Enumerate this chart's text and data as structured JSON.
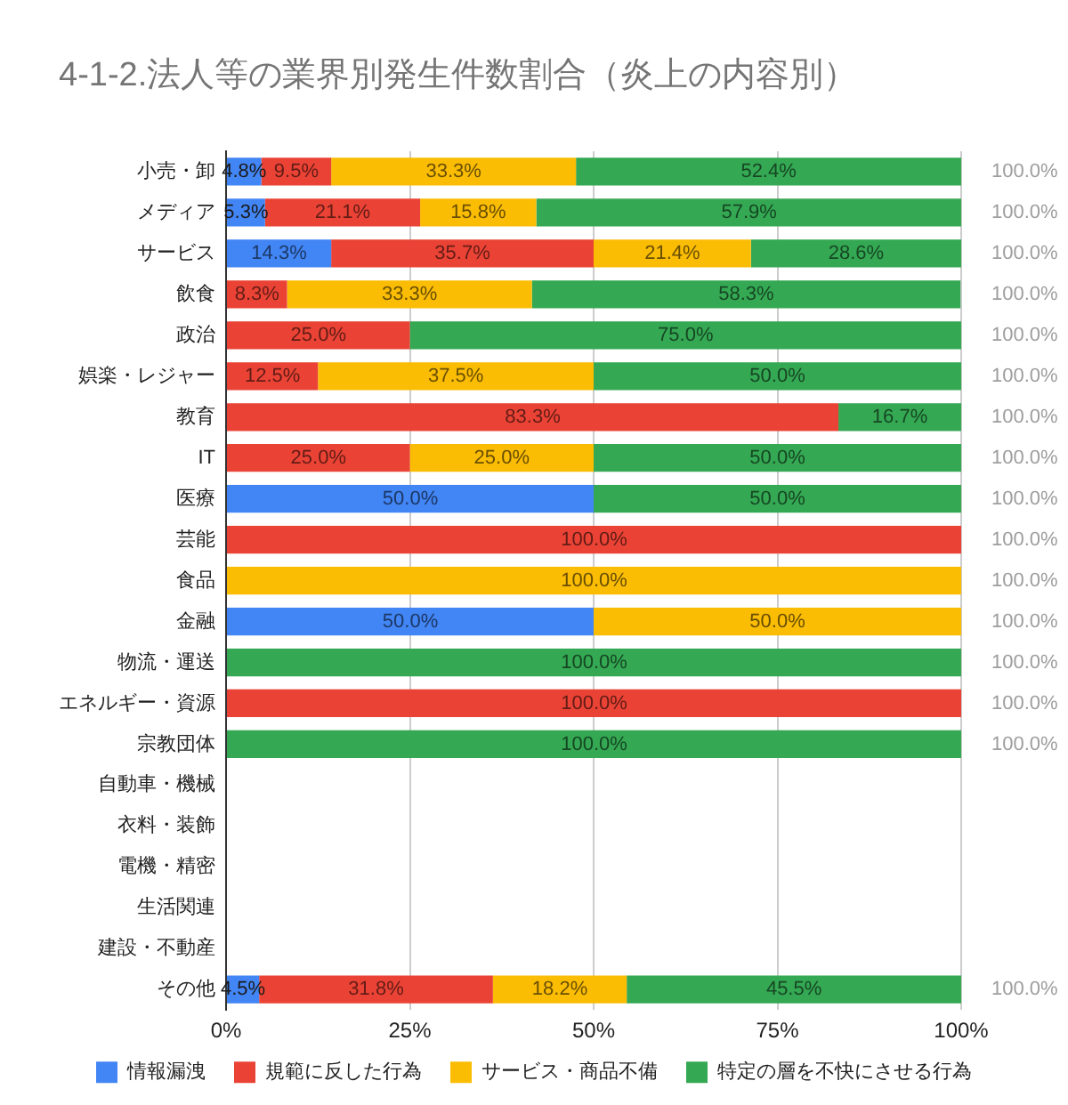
{
  "chart_data": {
    "type": "bar",
    "orientation": "horizontal",
    "stacked": true,
    "title": "4-1-2.法人等の業界別発生件数割合（炎上の内容別）",
    "categories": [
      "小売・卸",
      "メディア",
      "サービス",
      "飲食",
      "政治",
      "娯楽・レジャー",
      "教育",
      "IT",
      "医療",
      "芸能",
      "食品",
      "金融",
      "物流・運送",
      "エネルギー・資源",
      "宗教団体",
      "自動車・機械",
      "衣料・装飾",
      "電機・精密",
      "生活関連",
      "建設・不動産",
      "その他"
    ],
    "series": [
      {
        "name": "情報漏洩",
        "color": "#4285f4",
        "values": [
          4.8,
          5.3,
          14.3,
          null,
          null,
          null,
          null,
          null,
          50.0,
          null,
          null,
          50.0,
          null,
          null,
          null,
          null,
          null,
          null,
          null,
          null,
          4.5
        ],
        "value_labels": [
          "4.8%",
          "5.3%",
          "14.3%",
          null,
          null,
          null,
          null,
          null,
          "50.0%",
          null,
          null,
          "50.0%",
          null,
          null,
          null,
          null,
          null,
          null,
          null,
          null,
          "4.5%"
        ]
      },
      {
        "name": "規範に反した行為",
        "color": "#ea4335",
        "values": [
          9.5,
          21.1,
          35.7,
          8.3,
          25.0,
          12.5,
          83.3,
          25.0,
          null,
          100.0,
          null,
          null,
          null,
          100.0,
          null,
          null,
          null,
          null,
          null,
          null,
          31.8
        ],
        "value_labels": [
          "9.5%",
          "21.1%",
          "35.7%",
          "8.3%",
          "25.0%",
          "12.5%",
          "83.3%",
          "25.0%",
          null,
          "100.0%",
          null,
          null,
          null,
          "100.0%",
          null,
          null,
          null,
          null,
          null,
          null,
          "31.8%"
        ]
      },
      {
        "name": "サービス・商品不備",
        "color": "#fbbc04",
        "values": [
          33.3,
          15.8,
          21.4,
          33.3,
          null,
          37.5,
          null,
          25.0,
          null,
          null,
          100.0,
          50.0,
          null,
          null,
          null,
          null,
          null,
          null,
          null,
          null,
          18.2
        ],
        "value_labels": [
          "33.3%",
          "15.8%",
          "21.4%",
          "33.3%",
          null,
          "37.5%",
          null,
          "25.0%",
          null,
          null,
          "100.0%",
          "50.0%",
          null,
          null,
          null,
          null,
          null,
          null,
          null,
          null,
          "18.2%"
        ]
      },
      {
        "name": "特定の層を不快にさせる行為",
        "color": "#34a853",
        "values": [
          52.4,
          57.9,
          28.6,
          58.3,
          75.0,
          50.0,
          16.7,
          50.0,
          50.0,
          null,
          null,
          null,
          100.0,
          null,
          100.0,
          null,
          null,
          null,
          null,
          null,
          45.5
        ],
        "value_labels": [
          "52.4%",
          "57.9%",
          "28.6%",
          "58.3%",
          "75.0%",
          "50.0%",
          "16.7%",
          "50.0%",
          "50.0%",
          null,
          null,
          null,
          "100.0%",
          null,
          "100.0%",
          null,
          null,
          null,
          null,
          null,
          "45.5%"
        ]
      }
    ],
    "totals": [
      "100.0%",
      "100.0%",
      "100.0%",
      "100.0%",
      "100.0%",
      "100.0%",
      "100.0%",
      "100.0%",
      "100.0%",
      "100.0%",
      "100.0%",
      "100.0%",
      "100.0%",
      "100.0%",
      "100.0%",
      null,
      null,
      null,
      null,
      null,
      "100.0%"
    ],
    "xlim": [
      0,
      100
    ],
    "xticks": [
      {
        "value": 0,
        "label": "0%"
      },
      {
        "value": 25,
        "label": "25%"
      },
      {
        "value": 50,
        "label": "50%"
      },
      {
        "value": 75,
        "label": "75%"
      },
      {
        "value": 100,
        "label": "100%"
      }
    ],
    "grid": "x",
    "legend": "bottom"
  }
}
